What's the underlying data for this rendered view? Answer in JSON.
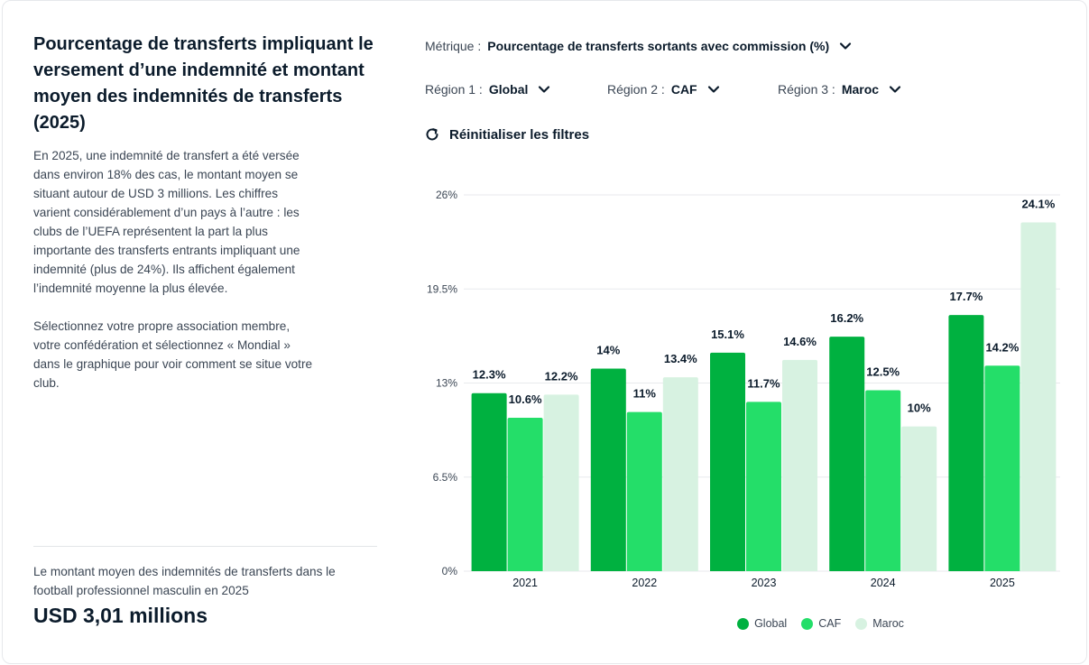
{
  "panel": {
    "title": "Pourcentage de transferts impliquant le versement d’une indemnité et montant moyen des indemnités de transferts (2025)",
    "paragraph1": "En 2025, une indemnité de transfert a été versée dans environ 18% des cas, le montant moyen se situant autour de USD 3 millions. Les chiffres varient considérablement d’un pays à l’autre : les clubs de l’UEFA représentent la part la plus importante des transferts entrants impliquant une indemnité (plus de 24%). Ils affichent également l’indemnité moyenne la plus élevée.",
    "paragraph2": "Sélectionnez votre propre association membre, votre confédération et sélectionnez « Mondial » dans le graphique pour voir comment se situe votre club.",
    "stat_label": "Le montant moyen des indemnités de transferts dans le football professionnel masculin en 2025",
    "stat_value": "USD 3,01 millions"
  },
  "filters": {
    "metric_label": "Métrique :",
    "metric_value": "Pourcentage de transferts sortants avec commission (%)",
    "region1_label": "Région 1 :",
    "region1_value": "Global",
    "region2_label": "Région 2 :",
    "region2_value": "CAF",
    "region3_label": "Région 3 :",
    "region3_value": "Maroc",
    "reset_label": "Réinitialiser les filtres"
  },
  "colors": {
    "global": "#00b140",
    "caf": "#24de69",
    "maroc": "#d7f2e1",
    "grid": "#e8eaed",
    "text": "#0b1b2b",
    "axis_text": "#3b4654"
  },
  "chart_data": {
    "type": "bar",
    "categories": [
      "2021",
      "2022",
      "2023",
      "2024",
      "2025"
    ],
    "series": [
      {
        "name": "Global",
        "values": [
          12.3,
          14,
          15.1,
          16.2,
          17.7
        ],
        "labels": [
          "12.3%",
          "14%",
          "15.1%",
          "16.2%",
          "17.7%"
        ]
      },
      {
        "name": "CAF",
        "values": [
          10.6,
          11,
          11.7,
          12.5,
          14.2
        ],
        "labels": [
          "10.6%",
          "11%",
          "11.7%",
          "12.5%",
          "14.2%"
        ]
      },
      {
        "name": "Maroc",
        "values": [
          12.2,
          13.4,
          14.6,
          10,
          24.1
        ],
        "labels": [
          "12.2%",
          "13.4%",
          "14.6%",
          "10%",
          "24.1%"
        ]
      }
    ],
    "yticks": [
      0,
      6.5,
      13,
      19.5,
      26
    ],
    "ytick_labels": [
      "0%",
      "6.5%",
      "13%",
      "19.5%",
      "26%"
    ],
    "ylim": [
      0,
      26
    ],
    "grid": true,
    "legend": "bottom",
    "title": "",
    "xlabel": "",
    "ylabel": ""
  }
}
